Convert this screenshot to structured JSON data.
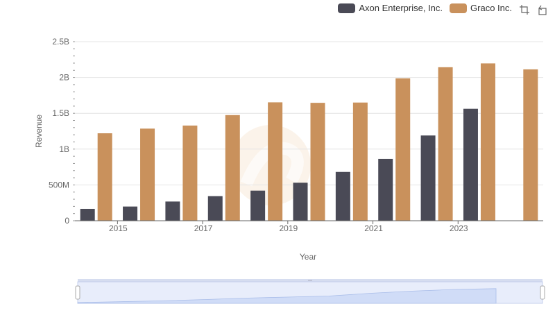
{
  "toolbox": {
    "zoom_icon": "zoom-select-icon",
    "restore_icon": "restore-icon"
  },
  "chart_data": {
    "type": "bar",
    "title": "",
    "xlabel": "Year",
    "ylabel": "Revenue",
    "categories": [
      "2014",
      "2015",
      "2016",
      "2017",
      "2018",
      "2019",
      "2020",
      "2021",
      "2022",
      "2023",
      "2024"
    ],
    "x_tick_labels": [
      "2015",
      "2017",
      "2019",
      "2021",
      "2023"
    ],
    "y_ticks": [
      0,
      500000000,
      1000000000,
      1500000000,
      2000000000,
      2500000000
    ],
    "y_tick_labels": [
      "0",
      "500M",
      "1B",
      "1.5B",
      "2B",
      "2.5B"
    ],
    "ylim": [
      0,
      2500000000
    ],
    "grid": true,
    "legend_position": "top-right",
    "series": [
      {
        "name": "Axon Enterprise, Inc.",
        "color": "#4a4a56",
        "values": [
          165000000,
          198000000,
          268000000,
          344000000,
          420000000,
          531000000,
          681000000,
          863000000,
          1190000000,
          1563000000,
          null
        ]
      },
      {
        "name": "Graco Inc.",
        "color": "#c9915c",
        "values": [
          1221000000,
          1286000000,
          1329000000,
          1475000000,
          1653000000,
          1646000000,
          1650000000,
          1988000000,
          2143000000,
          2196000000,
          2113000000
        ]
      }
    ]
  }
}
